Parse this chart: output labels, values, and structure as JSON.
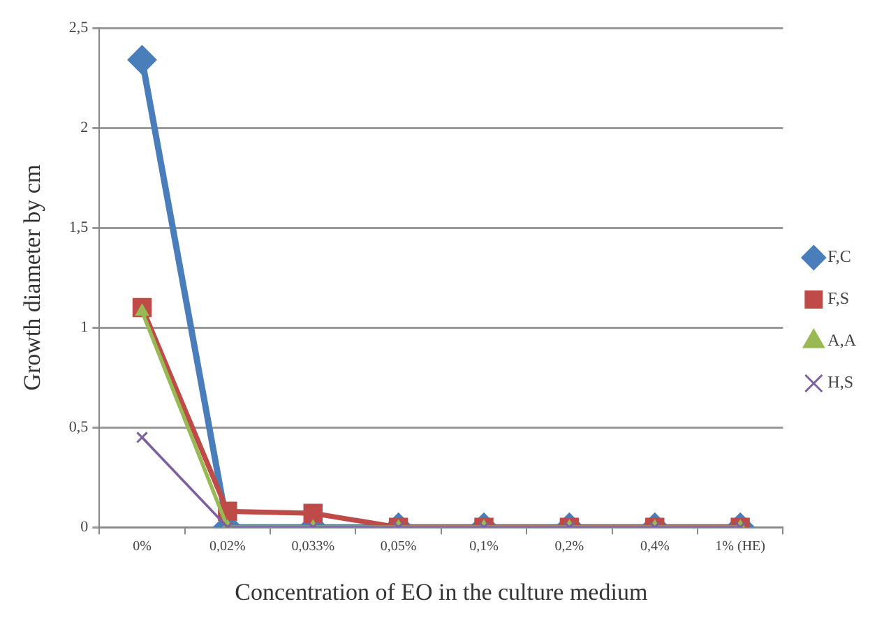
{
  "chart_data": {
    "type": "line",
    "xlabel": "Concentration of EO in the culture medium",
    "ylabel": "Growth diameter by cm",
    "categories": [
      "0%",
      "0,02%",
      "0,033%",
      "0,05%",
      "0,1%",
      "0,2%",
      "0,4%",
      "1% (HE)"
    ],
    "ylim": [
      0,
      2.5
    ],
    "yticks": [
      0,
      {
        "value": 0.5,
        "label": "0,5"
      },
      1,
      {
        "value": 1.5,
        "label": "1,5"
      },
      2,
      {
        "value": 2.5,
        "label": "2,5"
      }
    ],
    "grid": "y",
    "legend": "right",
    "series": [
      {
        "name": "F,C",
        "color": "#4a7ebb",
        "marker": "diamond",
        "values": [
          2.34,
          0,
          0,
          0,
          0,
          0,
          0,
          0
        ]
      },
      {
        "name": "F,S",
        "color": "#be4b48",
        "marker": "square",
        "values": [
          1.1,
          0.08,
          0.07,
          0,
          0,
          0,
          0,
          0
        ]
      },
      {
        "name": "A,A",
        "color": "#98b954",
        "marker": "triangle",
        "values": [
          1.08,
          0,
          0,
          0,
          0,
          0,
          0,
          0
        ]
      },
      {
        "name": "H,S",
        "color": "#7d60a0",
        "marker": "cross",
        "values": [
          0.45,
          0,
          0,
          0,
          0,
          0,
          0,
          0
        ]
      }
    ]
  }
}
